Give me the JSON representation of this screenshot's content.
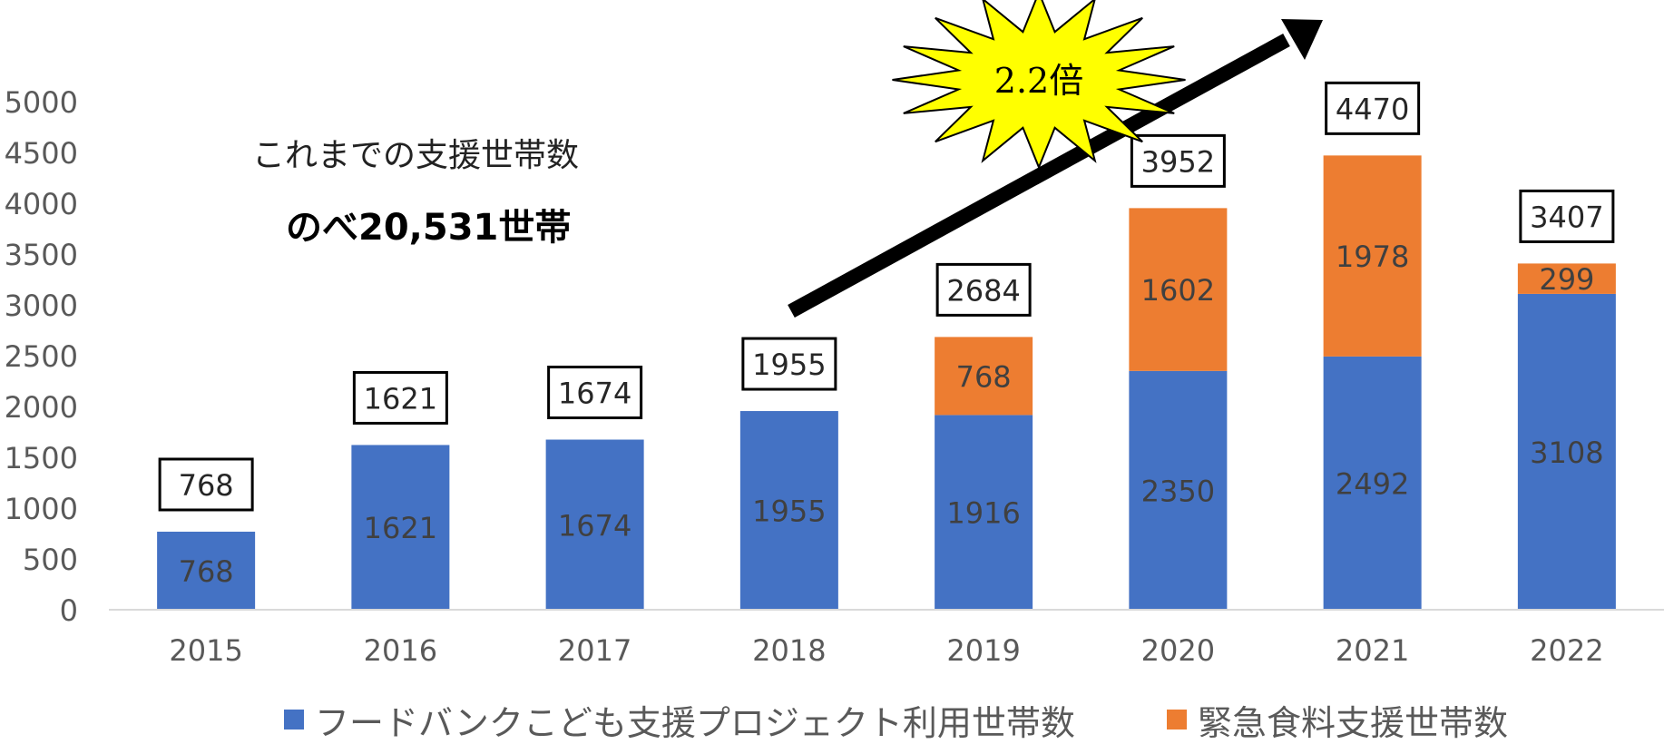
{
  "chart_data": {
    "type": "bar",
    "stacked": true,
    "categories": [
      "2015",
      "2016",
      "2017",
      "2018",
      "2019",
      "2020",
      "2021",
      "2022"
    ],
    "series": [
      {
        "name": "フードバンクこども支援プロジェクト利用世帯数",
        "color": "#4472C4",
        "values": [
          768,
          1621,
          1674,
          1955,
          1916,
          2350,
          2492,
          3108
        ]
      },
      {
        "name": "緊急食料支援世帯数",
        "color": "#ED7D31",
        "values": [
          0,
          0,
          0,
          0,
          768,
          1602,
          1978,
          299
        ]
      }
    ],
    "totals": [
      768,
      1621,
      1674,
      1955,
      2684,
      3952,
      4470,
      3407
    ],
    "ylim": [
      0,
      5000
    ],
    "yticks": [
      0,
      500,
      1000,
      1500,
      2000,
      2500,
      3000,
      3500,
      4000,
      4500,
      5000
    ],
    "grid": false,
    "legend_position": "bottom",
    "annotation_badge": "2.2倍",
    "annotations": {
      "line1": "これまでの支援世帯数",
      "line2": "のべ20,531世帯"
    }
  },
  "colors": {
    "blue": "#4472C4",
    "orange": "#ED7D31",
    "badge": "#FFFF00"
  }
}
